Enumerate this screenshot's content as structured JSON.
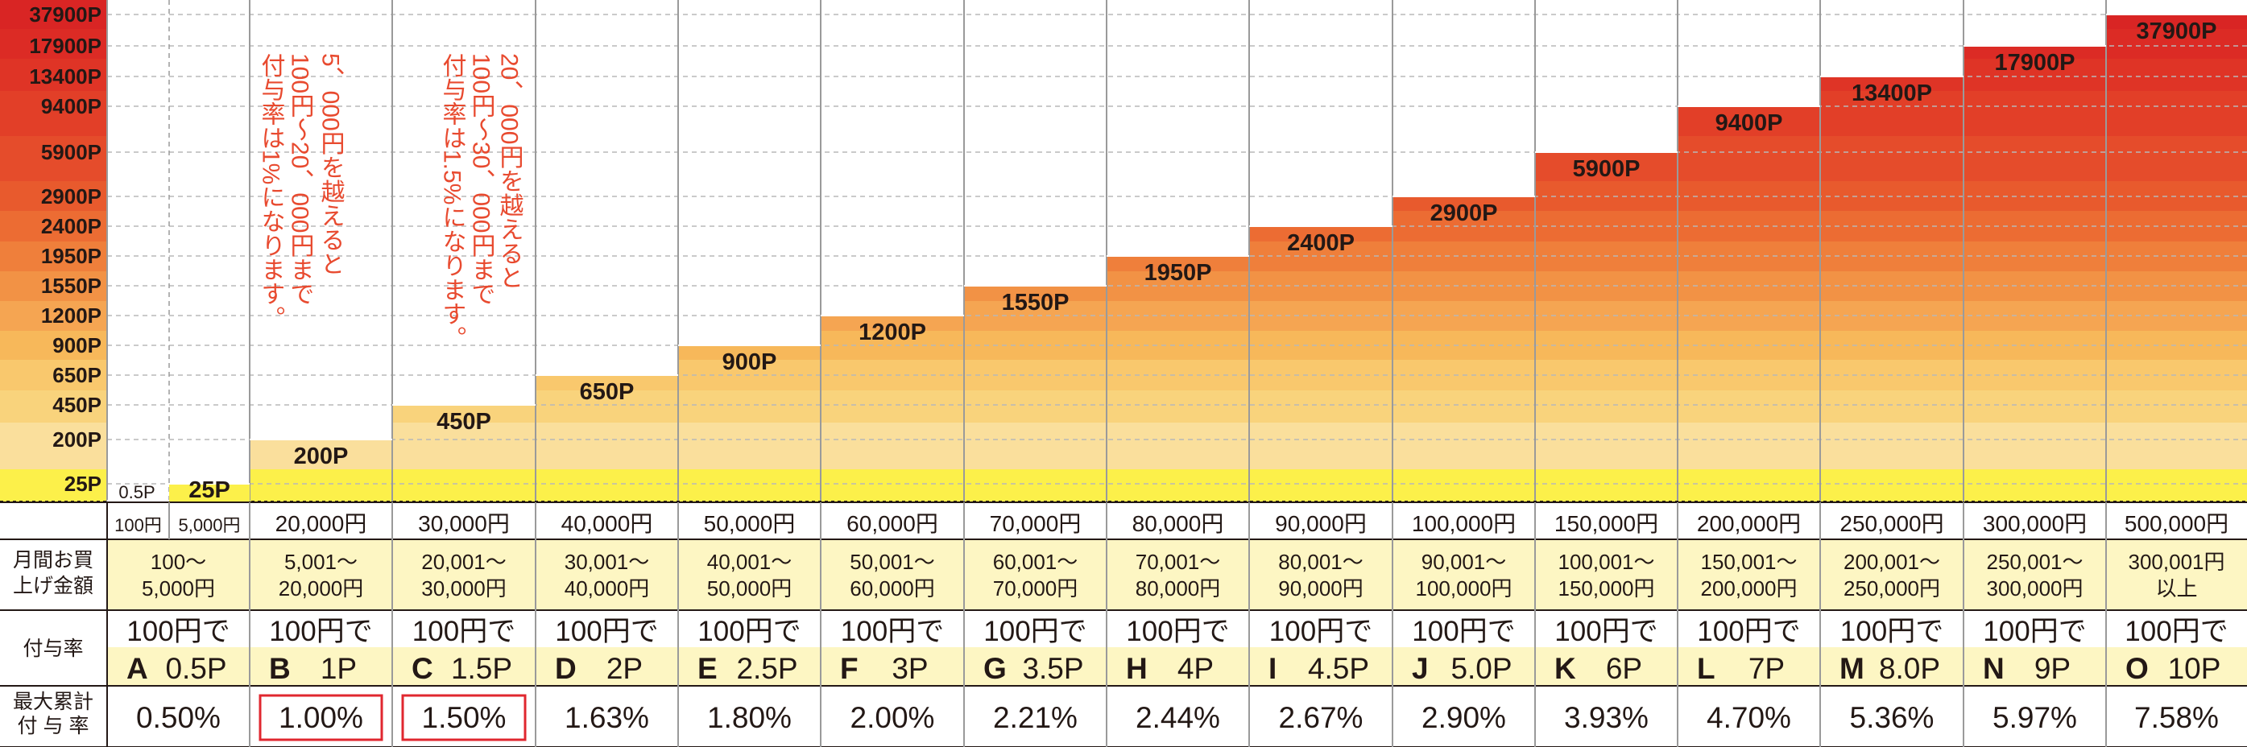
{
  "chart_data": {
    "type": "bar",
    "y_axis_ticks": [
      "25P",
      "200P",
      "450P",
      "650P",
      "900P",
      "1200P",
      "1550P",
      "1950P",
      "2400P",
      "2900P",
      "5900P",
      "9400P",
      "13400P",
      "17900P",
      "37900P"
    ],
    "y_axis_top_label": "37900P",
    "categories": [
      "100円",
      "5,000円",
      "20,000円",
      "30,000円",
      "40,000円",
      "50,000円",
      "60,000円",
      "70,000円",
      "80,000円",
      "90,000円",
      "100,000円",
      "150,000円",
      "200,000円",
      "250,000円",
      "300,000円",
      "500,000円"
    ],
    "values": [
      0.5,
      25,
      200,
      450,
      650,
      900,
      1200,
      1550,
      1950,
      2400,
      2900,
      5900,
      9400,
      13400,
      17900,
      37900
    ],
    "value_labels": [
      "0.5P",
      "25P",
      "200P",
      "450P",
      "650P",
      "900P",
      "1200P",
      "1550P",
      "1950P",
      "2400P",
      "2900P",
      "5900P",
      "9400P",
      "13400P",
      "17900P",
      "37900P"
    ],
    "band_colors": [
      "#fcf04a",
      "#fadf9c",
      "#f9d37c",
      "#f9c86d",
      "#f7b85a",
      "#f5a552",
      "#f29245",
      "#ef7f3b",
      "#ec6c33",
      "#e85a2d",
      "#e54c2b",
      "#e23f28",
      "#df3426",
      "#dc2b25",
      "#d92524"
    ],
    "annotations": [
      {
        "lines": [
          "5、000円を越えると",
          "100円〜20、000円まで",
          "付与率は1%になります。"
        ]
      },
      {
        "lines": [
          "20、000円を越えると",
          "100円〜30、000円まで",
          "付与率は1.5%になります。"
        ]
      }
    ],
    "grid": true
  },
  "table": {
    "monthly_label_lines": [
      "月間お買",
      "上げ金額"
    ],
    "ranges": [
      [
        "100〜",
        "5,000円"
      ],
      [
        "5,001〜",
        "20,000円"
      ],
      [
        "20,001〜",
        "30,000円"
      ],
      [
        "30,001〜",
        "40,000円"
      ],
      [
        "40,001〜",
        "50,000円"
      ],
      [
        "50,001〜",
        "60,000円"
      ],
      [
        "60,001〜",
        "70,000円"
      ],
      [
        "70,001〜",
        "80,000円"
      ],
      [
        "80,001〜",
        "90,000円"
      ],
      [
        "90,001〜",
        "100,000円"
      ],
      [
        "100,001〜",
        "150,000円"
      ],
      [
        "150,001〜",
        "200,000円"
      ],
      [
        "200,001〜",
        "250,000円"
      ],
      [
        "250,001〜",
        "300,000円"
      ],
      [
        "300,001円",
        "以上"
      ]
    ],
    "rate_label": "付与率",
    "rate_prefix": "100円で",
    "rates": [
      {
        "grade": "A",
        "points": "0.5P"
      },
      {
        "grade": "B",
        "points": "1P"
      },
      {
        "grade": "C",
        "points": "1.5P"
      },
      {
        "grade": "D",
        "points": "2P"
      },
      {
        "grade": "E",
        "points": "2.5P"
      },
      {
        "grade": "F",
        "points": "3P"
      },
      {
        "grade": "G",
        "points": "3.5P"
      },
      {
        "grade": "H",
        "points": "4P"
      },
      {
        "grade": "I",
        "points": "4.5P"
      },
      {
        "grade": "J",
        "points": "5.0P"
      },
      {
        "grade": "K",
        "points": "6P"
      },
      {
        "grade": "L",
        "points": "7P"
      },
      {
        "grade": "M",
        "points": "8.0P"
      },
      {
        "grade": "N",
        "points": "9P"
      },
      {
        "grade": "O",
        "points": "10P"
      }
    ],
    "max_label_lines": [
      "最大累計",
      "付 与 率"
    ],
    "max_rates": [
      "0.50%",
      "1.00%",
      "1.50%",
      "1.63%",
      "1.80%",
      "2.00%",
      "2.21%",
      "2.44%",
      "2.67%",
      "2.90%",
      "3.93%",
      "4.70%",
      "5.36%",
      "5.97%",
      "7.58%"
    ],
    "highlighted_max_rates": [
      1,
      2
    ],
    "highlight_color": "#e0272f",
    "row_fill_color": "#fdf6c3"
  }
}
